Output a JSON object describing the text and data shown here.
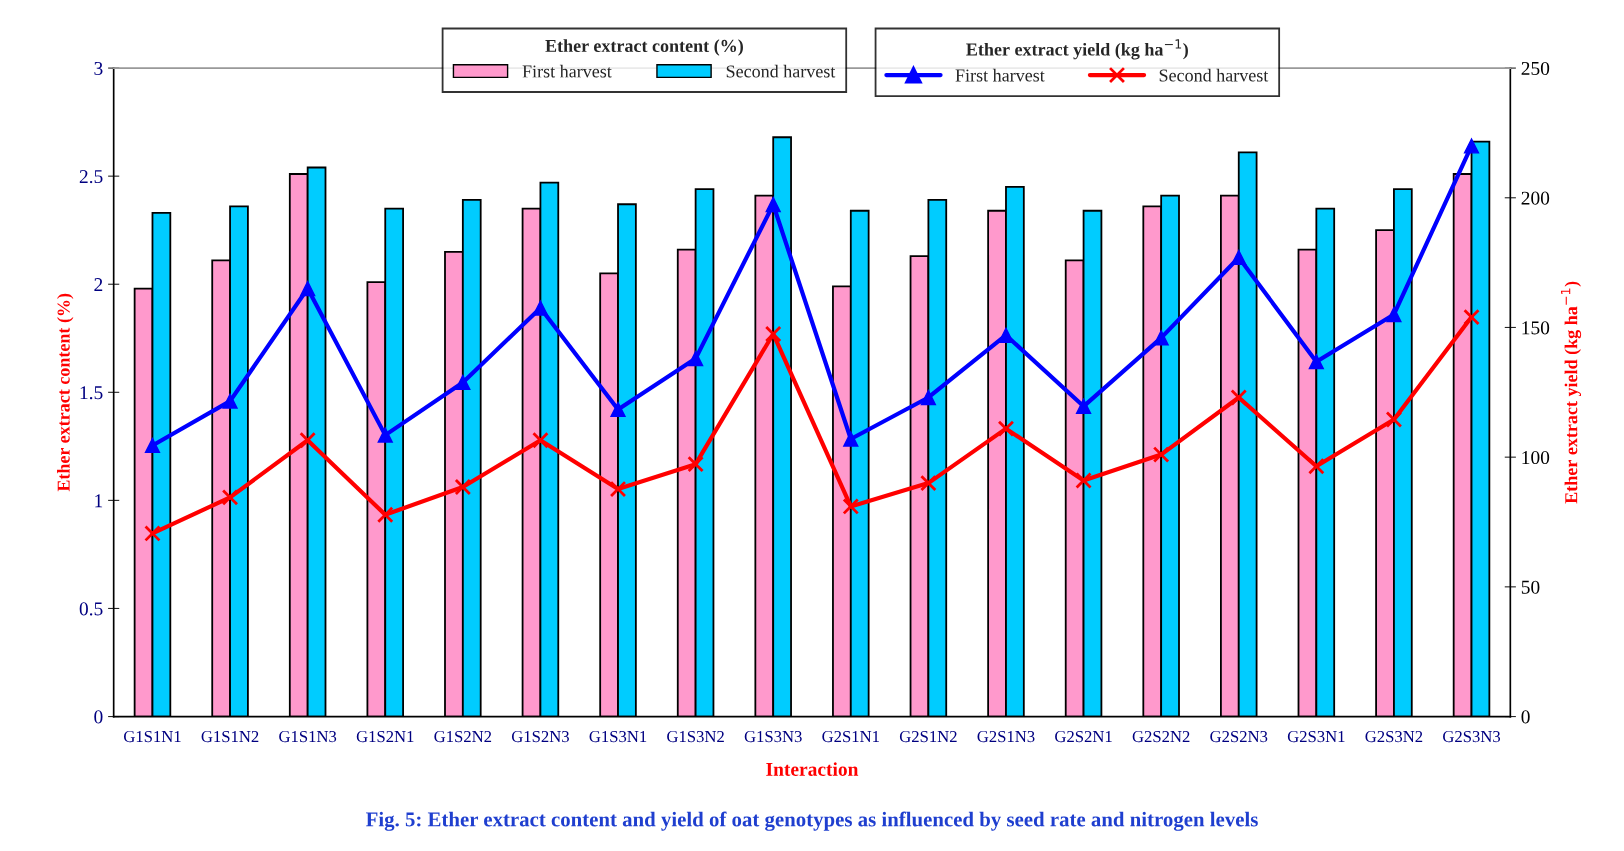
{
  "chart_data": {
    "type": "bar",
    "categories": [
      "G1S1N1",
      "G1S1N2",
      "G1S1N3",
      "G1S2N1",
      "G1S2N2",
      "G1S2N3",
      "G1S3N1",
      "G1S3N2",
      "G1S3N3",
      "G2S1N1",
      "G2S1N2",
      "G2S1N3",
      "G2S2N1",
      "G2S2N2",
      "G2S2N3",
      "G2S3N1",
      "G2S3N2",
      "G2S3N3"
    ],
    "series": [
      {
        "name": "First harvest",
        "color": "#ff99cc",
        "values": [
          1.98,
          2.11,
          2.51,
          2.01,
          2.15,
          2.35,
          2.05,
          2.16,
          2.41,
          1.99,
          2.13,
          2.34,
          2.11,
          2.36,
          2.41,
          2.16,
          2.25,
          2.51
        ]
      },
      {
        "name": "Second harvest",
        "color": "#00ccff",
        "values": [
          2.33,
          2.36,
          2.54,
          2.35,
          2.39,
          2.47,
          2.37,
          2.44,
          2.68,
          2.34,
          2.39,
          2.45,
          2.34,
          2.41,
          2.61,
          2.35,
          2.44,
          2.66
        ]
      },
      {
        "name": "First harvest",
        "type": "line",
        "axis": "y2",
        "color": "#0000ff",
        "marker": "triangle",
        "values": [
          104.5,
          121.6,
          165,
          108.5,
          128.8,
          157.5,
          118.4,
          138,
          197.4,
          107,
          123,
          147,
          119.6,
          146,
          177,
          136.8,
          155,
          220
        ]
      },
      {
        "name": "Second harvest",
        "type": "line",
        "axis": "y2",
        "color": "#ff0000",
        "marker": "cross",
        "values": [
          70.6,
          84.5,
          106.5,
          77.8,
          88.5,
          106.5,
          87.7,
          97.3,
          147.5,
          81,
          90,
          111,
          91,
          101,
          123,
          96.5,
          114.5,
          154
        ]
      }
    ],
    "xlabel": "Interaction",
    "ylabel": "Ether extract content (%)",
    "y2label": "Ether extract yield (kg ha$^{−1}$)",
    "legend_title": [
      "Ether extract content (%)",
      "Ether extract yield (kg ha$^{−1}$)"
    ],
    "legend": "top",
    "ylim": [
      0,
      3
    ],
    "yticks": [
      0,
      0.5,
      1,
      1.5,
      2,
      2.5,
      3
    ],
    "y2lim": [
      0,
      250
    ],
    "y2ticks": [
      0,
      50,
      100,
      150,
      200,
      250
    ],
    "grid": false,
    "line_style": "solid",
    "annotations": [
      "Fig. 5: Ether extract content and yield of oat genotypes as influenced by seed rate and nitrogen levels"
    ]
  }
}
